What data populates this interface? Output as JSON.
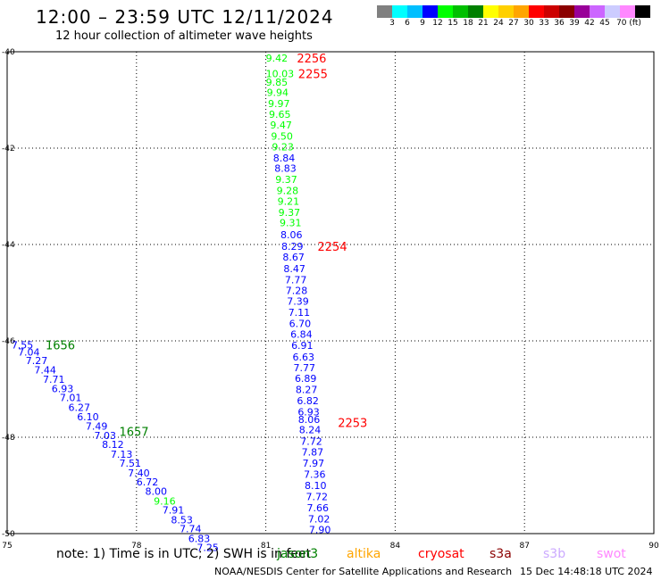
{
  "title": "12:00 – 23:59 UTC 12/11/2024",
  "subtitle": "12 hour collection of altimeter wave heights",
  "legend": {
    "colors": [
      "#808080",
      "#00ffff",
      "#00bfff",
      "#0000ff",
      "#00ff00",
      "#00c000",
      "#008000",
      "#ffff00",
      "#ffd000",
      "#ffa500",
      "#ff0000",
      "#cc0000",
      "#8b0000",
      "#990099",
      "#cc66ff",
      "#ccccff",
      "#ff88ff",
      "#000000"
    ],
    "labels": [
      "3",
      "6",
      "9",
      "12",
      "15",
      "18",
      "21",
      "24",
      "27",
      "30",
      "33",
      "36",
      "39",
      "42",
      "45",
      "70 (ft)"
    ]
  },
  "note": "note:  1) Time is in UTC; 2) SWH is in feet",
  "satellites": [
    {
      "name": "jason3",
      "color": "#008000"
    },
    {
      "name": "altika",
      "color": "#ffa500"
    },
    {
      "name": "cryosat",
      "color": "#ff0000"
    },
    {
      "name": "s3a",
      "color": "#8b0000"
    },
    {
      "name": "s3b",
      "color": "#ccaaff"
    },
    {
      "name": "swot",
      "color": "#ff88ff"
    }
  ],
  "credit": "NOAA/NESDIS Center for Satellite Applications and Research",
  "timestamp": "15 Dec 14:48:18 UTC 2024",
  "chart_data": {
    "type": "scatter",
    "xlim": [
      75,
      90
    ],
    "ylim": [
      -50,
      -40
    ],
    "xticks": [
      "75",
      "78",
      "81",
      "84",
      "87",
      "90"
    ],
    "yticks": [
      "-40",
      "-42",
      "-44",
      "-46",
      "-48",
      "-50"
    ],
    "grid": true,
    "time_labels": [
      {
        "text": "2256",
        "lon": 81.72,
        "lat": -40.13,
        "color": "#ff0000"
      },
      {
        "text": "2255",
        "lon": 81.75,
        "lat": -40.45,
        "color": "#ff0000"
      },
      {
        "text": "2254",
        "lon": 82.2,
        "lat": -44.04,
        "color": "#ff0000"
      },
      {
        "text": "2253",
        "lon": 82.67,
        "lat": -47.69,
        "color": "#ff0000"
      },
      {
        "text": "1656",
        "lon": 75.89,
        "lat": -46.08,
        "color": "#008000"
      },
      {
        "text": "1657",
        "lon": 77.6,
        "lat": -47.88,
        "color": "#008000"
      }
    ],
    "series": [
      {
        "name": "cryosat",
        "points": [
          {
            "lon": 81.0,
            "lat": -40.13,
            "swh": "9.42"
          },
          {
            "lon": 81.0,
            "lat": -40.45,
            "swh": "10.03"
          },
          {
            "lon": 81.0,
            "lat": -40.63,
            "swh": "9.85"
          },
          {
            "lon": 81.02,
            "lat": -40.84,
            "swh": "9.94"
          },
          {
            "lon": 81.05,
            "lat": -41.07,
            "swh": "9.97"
          },
          {
            "lon": 81.07,
            "lat": -41.3,
            "swh": "9.65"
          },
          {
            "lon": 81.1,
            "lat": -41.52,
            "swh": "9.47"
          },
          {
            "lon": 81.12,
            "lat": -41.75,
            "swh": "9.50"
          },
          {
            "lon": 81.14,
            "lat": -41.97,
            "swh": "9.23"
          },
          {
            "lon": 81.17,
            "lat": -42.2,
            "swh": "8.84"
          },
          {
            "lon": 81.2,
            "lat": -42.42,
            "swh": "8.83"
          },
          {
            "lon": 81.22,
            "lat": -42.65,
            "swh": "9.37"
          },
          {
            "lon": 81.25,
            "lat": -42.88,
            "swh": "9.28"
          },
          {
            "lon": 81.27,
            "lat": -43.1,
            "swh": "9.21"
          },
          {
            "lon": 81.29,
            "lat": -43.33,
            "swh": "9.37"
          },
          {
            "lon": 81.32,
            "lat": -43.55,
            "swh": "9.31"
          },
          {
            "lon": 81.34,
            "lat": -43.8,
            "swh": "8.06"
          },
          {
            "lon": 81.36,
            "lat": -44.04,
            "swh": "8.29"
          },
          {
            "lon": 81.39,
            "lat": -44.26,
            "swh": "8.67"
          },
          {
            "lon": 81.41,
            "lat": -44.5,
            "swh": "8.47"
          },
          {
            "lon": 81.44,
            "lat": -44.73,
            "swh": "7.77"
          },
          {
            "lon": 81.46,
            "lat": -44.95,
            "swh": "7.28"
          },
          {
            "lon": 81.49,
            "lat": -45.18,
            "swh": "7.39"
          },
          {
            "lon": 81.52,
            "lat": -45.41,
            "swh": "7.11"
          },
          {
            "lon": 81.54,
            "lat": -45.64,
            "swh": "6.70"
          },
          {
            "lon": 81.57,
            "lat": -45.86,
            "swh": "6.84"
          },
          {
            "lon": 81.59,
            "lat": -46.09,
            "swh": "6.91"
          },
          {
            "lon": 81.62,
            "lat": -46.33,
            "swh": "6.63"
          },
          {
            "lon": 81.64,
            "lat": -46.56,
            "swh": "7.77"
          },
          {
            "lon": 81.67,
            "lat": -46.78,
            "swh": "6.89"
          },
          {
            "lon": 81.69,
            "lat": -47.01,
            "swh": "8.27"
          },
          {
            "lon": 81.72,
            "lat": -47.24,
            "swh": "6.82"
          },
          {
            "lon": 81.74,
            "lat": -47.47,
            "swh": "6.93"
          },
          {
            "lon": 81.75,
            "lat": -47.63,
            "swh": "8.06"
          },
          {
            "lon": 81.77,
            "lat": -47.84,
            "swh": "8.24"
          },
          {
            "lon": 81.8,
            "lat": -48.08,
            "swh": "7.72"
          },
          {
            "lon": 81.83,
            "lat": -48.31,
            "swh": "7.87"
          },
          {
            "lon": 81.85,
            "lat": -48.54,
            "swh": "7.97"
          },
          {
            "lon": 81.88,
            "lat": -48.77,
            "swh": "7.36"
          },
          {
            "lon": 81.9,
            "lat": -49.0,
            "swh": "8.10"
          },
          {
            "lon": 81.93,
            "lat": -49.23,
            "swh": "7.72"
          },
          {
            "lon": 81.95,
            "lat": -49.46,
            "swh": "7.66"
          },
          {
            "lon": 81.98,
            "lat": -49.69,
            "swh": "7.02"
          },
          {
            "lon": 82.0,
            "lat": -49.92,
            "swh": "7.90"
          }
        ]
      },
      {
        "name": "jason3",
        "points": [
          {
            "lon": 75.1,
            "lat": -46.08,
            "swh": "7.55"
          },
          {
            "lon": 75.25,
            "lat": -46.23,
            "swh": "7.04"
          },
          {
            "lon": 75.43,
            "lat": -46.41,
            "swh": "7.27"
          },
          {
            "lon": 75.63,
            "lat": -46.6,
            "swh": "7.44"
          },
          {
            "lon": 75.83,
            "lat": -46.8,
            "swh": "7.71"
          },
          {
            "lon": 76.03,
            "lat": -46.99,
            "swh": "6.93"
          },
          {
            "lon": 76.22,
            "lat": -47.18,
            "swh": "7.01"
          },
          {
            "lon": 76.42,
            "lat": -47.38,
            "swh": "6.27"
          },
          {
            "lon": 76.62,
            "lat": -47.57,
            "swh": "6.10"
          },
          {
            "lon": 76.82,
            "lat": -47.77,
            "swh": "7.49"
          },
          {
            "lon": 77.02,
            "lat": -47.96,
            "swh": "7.03"
          },
          {
            "lon": 77.2,
            "lat": -48.15,
            "swh": "8.12"
          },
          {
            "lon": 77.4,
            "lat": -48.35,
            "swh": "7.13"
          },
          {
            "lon": 77.6,
            "lat": -48.54,
            "swh": "7.51"
          },
          {
            "lon": 77.8,
            "lat": -48.74,
            "swh": "7.40"
          },
          {
            "lon": 78.0,
            "lat": -48.93,
            "swh": "6.72"
          },
          {
            "lon": 78.2,
            "lat": -49.12,
            "swh": "8.00"
          },
          {
            "lon": 78.4,
            "lat": -49.32,
            "swh": "9.16"
          },
          {
            "lon": 78.6,
            "lat": -49.51,
            "swh": "7.91"
          },
          {
            "lon": 78.8,
            "lat": -49.71,
            "swh": "8.53"
          },
          {
            "lon": 79.0,
            "lat": -49.9,
            "swh": "7.74"
          },
          {
            "lon": 79.2,
            "lat": -50.1,
            "swh": "6.83"
          },
          {
            "lon": 79.4,
            "lat": -50.29,
            "swh": "7.25"
          }
        ]
      }
    ]
  }
}
